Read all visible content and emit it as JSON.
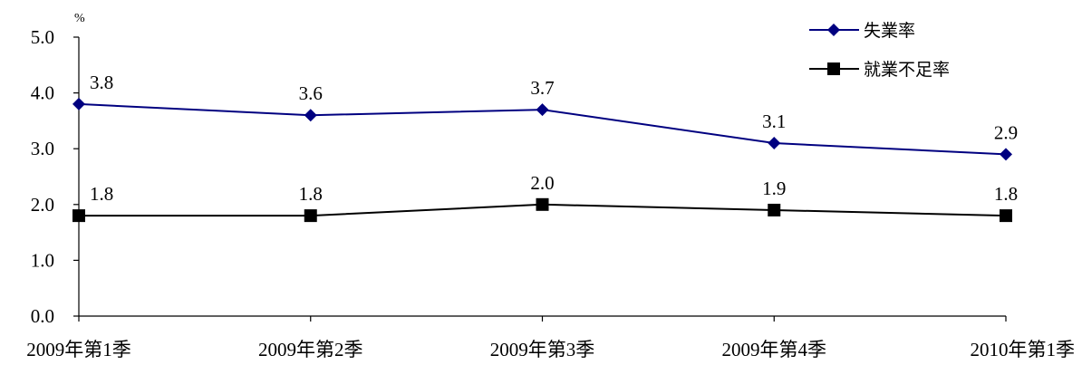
{
  "chart_data": {
    "type": "line",
    "categories": [
      "2009年第1季",
      "2009年第2季",
      "2009年第3季",
      "2009年第4季",
      "2010年第1季"
    ],
    "series": [
      {
        "name": "失業率",
        "values": [
          3.8,
          3.6,
          3.7,
          3.1,
          2.9
        ],
        "color": "#000080",
        "marker": "diamond"
      },
      {
        "name": "就業不足率",
        "values": [
          1.8,
          1.8,
          2.0,
          1.9,
          1.8
        ],
        "color": "#000000",
        "marker": "square"
      }
    ],
    "data_labels": [
      [
        "3.8",
        "3.6",
        "3.7",
        "3.1",
        "2.9"
      ],
      [
        "1.8",
        "1.8",
        "2.0",
        "1.9",
        "1.8"
      ]
    ],
    "ylim": [
      0,
      5
    ],
    "yticks": [
      "0.0",
      "1.0",
      "2.0",
      "3.0",
      "4.0",
      "5.0"
    ],
    "yunit": "%",
    "grid": false,
    "legend_position": "top-right"
  }
}
